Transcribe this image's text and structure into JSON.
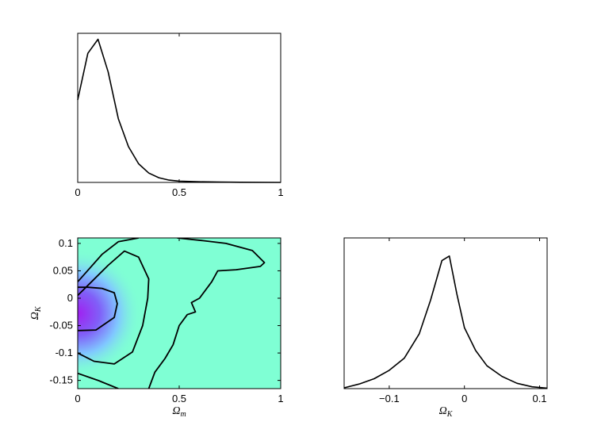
{
  "chart_data": [
    {
      "type": "line",
      "panel": "marginal-omega-m",
      "xlabel": "",
      "ylabel": "",
      "xlim": [
        0,
        1
      ],
      "ylim": [
        0,
        1
      ],
      "xticks": [
        0,
        0.5,
        1
      ],
      "xtick_labels": [
        "0",
        "0.5",
        "1"
      ],
      "x": [
        0,
        0.05,
        0.1,
        0.15,
        0.2,
        0.25,
        0.3,
        0.35,
        0.4,
        0.45,
        0.5,
        0.6,
        0.7,
        0.8,
        1.0
      ],
      "y": [
        0.53,
        0.83,
        0.92,
        0.71,
        0.41,
        0.23,
        0.12,
        0.06,
        0.03,
        0.015,
        0.008,
        0.004,
        0.002,
        0.001,
        0.0
      ]
    },
    {
      "type": "heatmap",
      "panel": "joint-omega-m-omega-k",
      "xlabel": "Ω_m",
      "ylabel": "Ω_K",
      "xlim": [
        0,
        1
      ],
      "ylim": [
        -0.165,
        0.11
      ],
      "xticks": [
        0,
        0.5,
        1
      ],
      "xtick_labels": [
        "0",
        "0.5",
        "1"
      ],
      "yticks": [
        0.1,
        0.05,
        0,
        -0.05,
        -0.1,
        -0.15
      ],
      "ytick_labels": [
        "0.1",
        "0.05",
        "0",
        "-0.05",
        "-0.1",
        "-0.15"
      ],
      "peak": {
        "x": 0.0,
        "y": -0.02
      },
      "colors": {
        "background": "#7fffd4",
        "peak": "#a020f0"
      },
      "contours": [
        {
          "level": "inner",
          "points": [
            [
              0.0,
              -0.059
            ],
            [
              0.09,
              -0.058
            ],
            [
              0.18,
              -0.035
            ],
            [
              0.195,
              -0.01
            ],
            [
              0.18,
              0.01
            ],
            [
              0.12,
              0.018
            ],
            [
              0.05,
              0.02
            ],
            [
              0.0,
              0.02
            ]
          ]
        },
        {
          "level": "middle",
          "points": [
            [
              0.0,
              -0.1
            ],
            [
              0.08,
              -0.115
            ],
            [
              0.18,
              -0.12
            ],
            [
              0.27,
              -0.098
            ],
            [
              0.32,
              -0.05
            ],
            [
              0.345,
              0.0
            ],
            [
              0.35,
              0.035
            ],
            [
              0.3,
              0.075
            ],
            [
              0.23,
              0.086
            ],
            [
              0.15,
              0.06
            ],
            [
              0.06,
              0.027
            ],
            [
              0.0,
              0.005
            ]
          ]
        },
        {
          "level": "outer-left",
          "points": [
            [
              0.0,
              -0.137
            ],
            [
              0.1,
              -0.15
            ],
            [
              0.2,
              -0.165
            ]
          ]
        },
        {
          "level": "outer-top",
          "points": [
            [
              0.0,
              0.03
            ],
            [
              0.12,
              0.08
            ],
            [
              0.2,
              0.103
            ],
            [
              0.3,
              0.11
            ]
          ]
        },
        {
          "level": "outer-right",
          "points": [
            [
              0.49,
              0.11
            ],
            [
              0.62,
              0.105
            ],
            [
              0.73,
              0.1
            ],
            [
              0.86,
              0.087
            ],
            [
              0.92,
              0.065
            ],
            [
              0.9,
              0.058
            ],
            [
              0.78,
              0.052
            ],
            [
              0.69,
              0.05
            ],
            [
              0.66,
              0.03
            ],
            [
              0.6,
              0.0
            ],
            [
              0.56,
              -0.008
            ],
            [
              0.58,
              -0.025
            ],
            [
              0.54,
              -0.03
            ],
            [
              0.5,
              -0.05
            ],
            [
              0.47,
              -0.085
            ],
            [
              0.43,
              -0.11
            ],
            [
              0.38,
              -0.135
            ],
            [
              0.35,
              -0.165
            ]
          ]
        }
      ]
    },
    {
      "type": "line",
      "panel": "marginal-omega-k",
      "xlabel": "Ω_K",
      "ylabel": "",
      "xlim": [
        -0.16,
        0.11
      ],
      "ylim": [
        0,
        1
      ],
      "xticks": [
        -0.1,
        0,
        0.1
      ],
      "xtick_labels": [
        "−0.1",
        "0",
        "0.1"
      ],
      "x": [
        -0.16,
        -0.14,
        -0.12,
        -0.1,
        -0.08,
        -0.06,
        -0.045,
        -0.03,
        -0.02,
        -0.01,
        0.0,
        0.015,
        0.03,
        0.05,
        0.07,
        0.09,
        0.11
      ],
      "y": [
        0.005,
        0.03,
        0.065,
        0.12,
        0.2,
        0.36,
        0.58,
        0.84,
        0.87,
        0.62,
        0.4,
        0.25,
        0.15,
        0.08,
        0.035,
        0.012,
        0.003
      ]
    }
  ]
}
